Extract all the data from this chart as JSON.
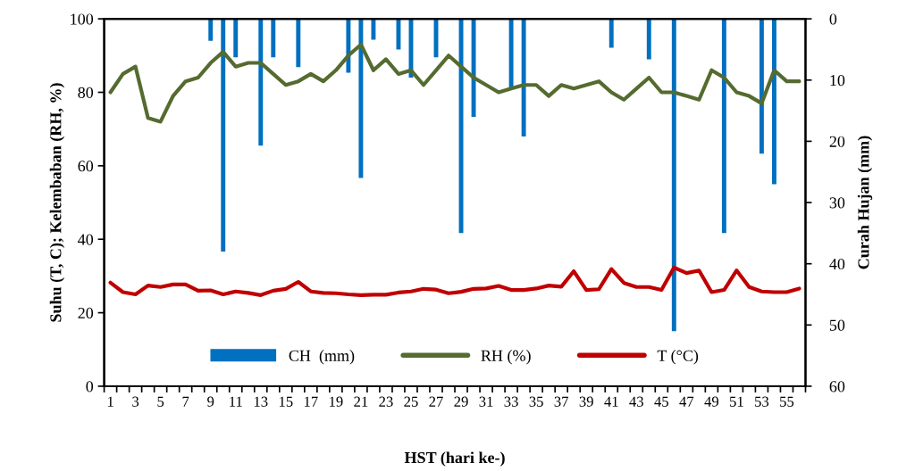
{
  "chart_data": {
    "type": "line",
    "xlabel": "HST (hari ke-)",
    "ylabel": "Suhu (T, C); Kelembaban (RH, %)",
    "y2label": "Curah Hujan (mm)",
    "categories": [
      "1",
      null,
      "3",
      null,
      "5",
      null,
      "7",
      null,
      "9",
      null,
      "11",
      null,
      "13",
      null,
      "15",
      null,
      "17",
      null,
      "19",
      null,
      "21",
      null,
      "23",
      null,
      "25",
      null,
      "27",
      null,
      "29",
      null,
      "31",
      null,
      "33",
      null,
      "35",
      null,
      "37",
      null,
      "39",
      null,
      "41",
      null,
      "43",
      null,
      "45",
      null,
      "47",
      null,
      "49",
      null,
      "51",
      null,
      "53",
      null,
      "55",
      null
    ],
    "ylim": [
      0,
      100
    ],
    "yticks": [
      0,
      20,
      40,
      60,
      80,
      100
    ],
    "y2lim": [
      60,
      0
    ],
    "y2ticks": [
      0,
      10,
      20,
      30,
      40,
      50,
      60
    ],
    "legend": "bottom",
    "grid": false,
    "marker": "none",
    "line_style": "solid",
    "series": [
      {
        "name": "CH  (mm)",
        "type": "bar",
        "axis": "y2",
        "color": "#0070c0",
        "values": [
          0,
          0,
          0,
          0,
          0,
          0,
          0,
          0,
          3.6,
          38,
          6.3,
          0,
          20.7,
          6.3,
          0,
          7.9,
          0,
          0,
          0,
          8.8,
          26,
          3.4,
          0,
          5,
          9.6,
          0,
          6.3,
          0,
          35,
          16,
          0,
          0,
          11.3,
          19.2,
          0,
          0,
          0,
          0,
          0,
          0,
          4.7,
          0,
          0,
          6.6,
          0,
          51,
          0,
          0,
          0,
          35,
          0,
          0,
          22,
          27,
          0,
          0
        ]
      },
      {
        "name": "RH (%)",
        "color": "#556b2f",
        "values": [
          80,
          85,
          87,
          73,
          72,
          79,
          83,
          84,
          88,
          91,
          87,
          88,
          88,
          85,
          82,
          83,
          85,
          83,
          86,
          90,
          93,
          86,
          89,
          85,
          86,
          82,
          86,
          90,
          87,
          84,
          82,
          80,
          81,
          82,
          82,
          79,
          82,
          81,
          82,
          83,
          80,
          78,
          81,
          84,
          80,
          80,
          79,
          78,
          86,
          84,
          80,
          79,
          77,
          86,
          83,
          83
        ]
      },
      {
        "name": "T (°C)",
        "color": "#c00000",
        "values": [
          28.2,
          25.6,
          25,
          27.4,
          27,
          27.7,
          27.7,
          26,
          26.1,
          25,
          25.8,
          25.4,
          24.8,
          26,
          26.5,
          28.4,
          25.8,
          25.4,
          25.3,
          25,
          24.8,
          24.9,
          24.9,
          25.5,
          25.8,
          26.5,
          26.3,
          25.3,
          25.7,
          26.5,
          26.6,
          27.3,
          26.2,
          26.2,
          26.6,
          27.4,
          27.1,
          31.3,
          26.2,
          26.4,
          31.9,
          28.1,
          27,
          27,
          26.2,
          32.3,
          30.8,
          31.5,
          25.6,
          26.2,
          31.5,
          27,
          25.8,
          25.6,
          25.6,
          26.6
        ]
      }
    ]
  }
}
